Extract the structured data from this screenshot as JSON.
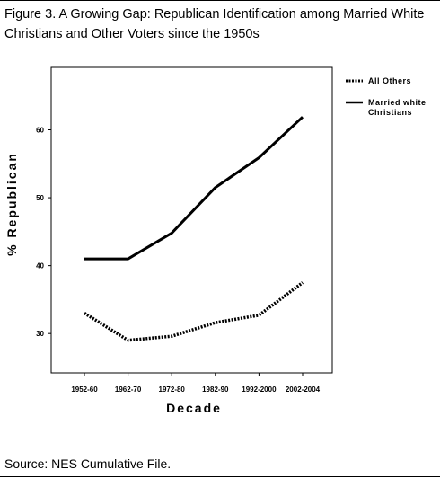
{
  "figure": {
    "title": "Figure 3. A Growing Gap: Republican Identification among Married White Christians and Other Voters since the 1950s",
    "source": "Source: NES Cumulative File."
  },
  "chart_data": {
    "type": "line",
    "title": "",
    "xlabel": "Decade",
    "ylabel": "% Republican",
    "categories": [
      "1952-60",
      "1962-70",
      "1972-80",
      "1982-90",
      "1992-2000",
      "2002-2004"
    ],
    "yticks": [
      30,
      40,
      50,
      60
    ],
    "ylim": [
      24.2,
      69.2
    ],
    "grid": false,
    "legend_position": "top-right",
    "series": [
      {
        "name": "All Others",
        "style": "dotted",
        "color": "#000000",
        "values": [
          33,
          29,
          29.6,
          31.6,
          32.7,
          37.5
        ]
      },
      {
        "name": "Married white Christians",
        "style": "solid",
        "color": "#000000",
        "values": [
          41,
          41,
          44.8,
          51.5,
          55.9,
          61.9
        ]
      }
    ]
  }
}
